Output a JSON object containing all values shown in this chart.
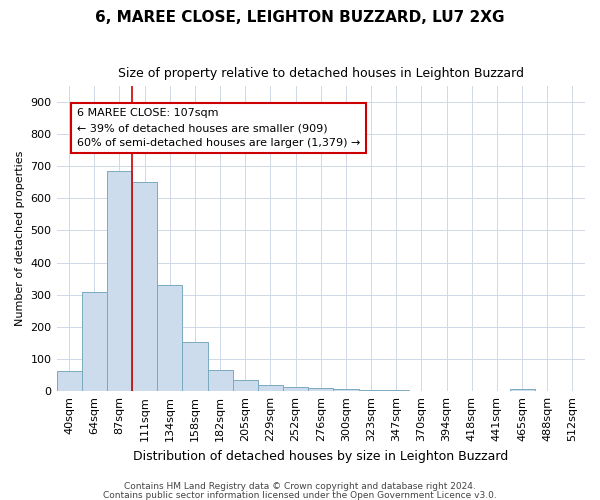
{
  "title1": "6, MAREE CLOSE, LEIGHTON BUZZARD, LU7 2XG",
  "title2": "Size of property relative to detached houses in Leighton Buzzard",
  "xlabel": "Distribution of detached houses by size in Leighton Buzzard",
  "ylabel": "Number of detached properties",
  "categories": [
    "40sqm",
    "64sqm",
    "87sqm",
    "111sqm",
    "134sqm",
    "158sqm",
    "182sqm",
    "205sqm",
    "229sqm",
    "252sqm",
    "276sqm",
    "300sqm",
    "323sqm",
    "347sqm",
    "370sqm",
    "394sqm",
    "418sqm",
    "441sqm",
    "465sqm",
    "488sqm",
    "512sqm"
  ],
  "values": [
    63,
    310,
    685,
    650,
    330,
    153,
    65,
    35,
    20,
    13,
    10,
    8,
    5,
    3,
    0,
    0,
    0,
    0,
    7,
    0,
    0
  ],
  "bar_color": "#ccdcec",
  "bar_edge_color": "#7aaabf",
  "vline_color": "#cc0000",
  "vline_position": 2.5,
  "annotation_text": "6 MAREE CLOSE: 107sqm\n← 39% of detached houses are smaller (909)\n60% of semi-detached houses are larger (1,379) →",
  "annotation_box_color": "white",
  "annotation_box_edge_color": "#cc0000",
  "ylim": [
    0,
    950
  ],
  "yticks": [
    0,
    100,
    200,
    300,
    400,
    500,
    600,
    700,
    800,
    900
  ],
  "footer1": "Contains HM Land Registry data © Crown copyright and database right 2024.",
  "footer2": "Contains public sector information licensed under the Open Government Licence v3.0.",
  "background_color": "#ffffff",
  "grid_color": "#d0d8e8",
  "title1_fontsize": 11,
  "title2_fontsize": 9,
  "xlabel_fontsize": 9,
  "ylabel_fontsize": 8,
  "tick_fontsize": 8,
  "annotation_fontsize": 8,
  "footer_fontsize": 6.5
}
